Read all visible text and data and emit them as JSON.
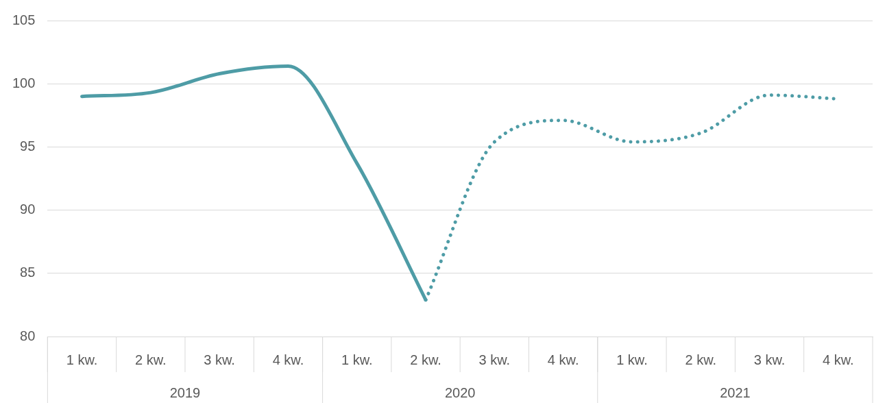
{
  "chart_data": {
    "type": "line",
    "categories": [
      "1 kw.",
      "2 kw.",
      "3 kw.",
      "4 kw.",
      "1 kw.",
      "2 kw.",
      "3 kw.",
      "4 kw.",
      "1 kw.",
      "2 kw.",
      "3 kw.",
      "4 kw."
    ],
    "series": [
      {
        "color": "#4e9ca6",
        "line_style": "solid",
        "values": [
          99.0,
          99.3,
          100.8,
          101.4,
          93.7,
          82.9,
          null,
          null,
          null,
          null,
          null,
          null
        ]
      },
      {
        "color": "#4e9ca6",
        "line_style": "dotted",
        "values": [
          null,
          null,
          null,
          null,
          null,
          82.9,
          95.4,
          97.1,
          95.4,
          96.1,
          99.1,
          98.8
        ]
      }
    ],
    "ylim": [
      80,
      105
    ],
    "yticks": [
      80,
      85,
      90,
      95,
      100,
      105
    ],
    "grid": "y",
    "legend": false,
    "marker": "none",
    "annotations": [
      "2019",
      "2020",
      "2021"
    ]
  }
}
